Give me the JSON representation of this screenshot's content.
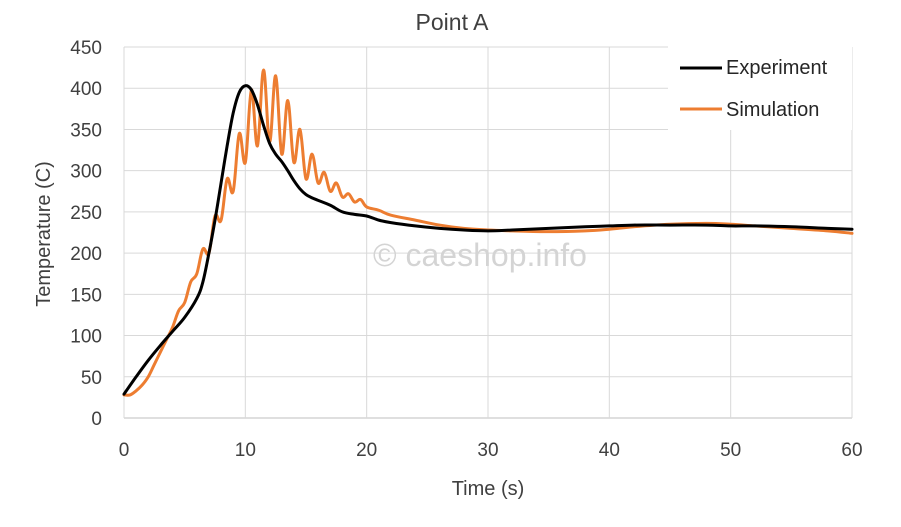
{
  "watermark": "© caeshop.info",
  "chart_data": {
    "type": "line",
    "title": "Point A",
    "xlabel": "Time (s)",
    "ylabel": "Temperature (C)",
    "xlim": [
      0,
      60
    ],
    "ylim": [
      0,
      450
    ],
    "xticks": [
      0,
      10,
      20,
      30,
      40,
      50,
      60
    ],
    "yticks": [
      0,
      50,
      100,
      150,
      200,
      250,
      300,
      350,
      400,
      450
    ],
    "grid": true,
    "legend_position": "top-right",
    "series": [
      {
        "name": "Experiment",
        "color": "#000000",
        "x": [
          0,
          1,
          2,
          3,
          4,
          5,
          6,
          6.5,
          7,
          7.5,
          8,
          8.5,
          9,
          9.5,
          10,
          10.5,
          11,
          11.5,
          12,
          12.5,
          13,
          13.5,
          14,
          14.5,
          15,
          15.5,
          16,
          17,
          18,
          19,
          20,
          21,
          22,
          24,
          26,
          28,
          30,
          32,
          35,
          38,
          40,
          42,
          45,
          48,
          50,
          52,
          55,
          58,
          60
        ],
        "y": [
          29,
          50,
          70,
          88,
          105,
          122,
          145,
          165,
          200,
          240,
          285,
          330,
          370,
          395,
          403,
          398,
          380,
          355,
          333,
          320,
          311,
          300,
          288,
          278,
          271,
          267,
          264,
          258,
          250,
          247,
          245,
          240,
          237,
          233,
          230,
          228,
          227,
          228,
          230,
          232,
          233,
          234,
          234,
          234,
          233,
          233,
          232,
          230,
          229
        ]
      },
      {
        "name": "Simulation",
        "color": "#ED7D31",
        "x": [
          0,
          0.5,
          1,
          1.5,
          2,
          2.5,
          3,
          3.5,
          4,
          4.5,
          5,
          5.5,
          6,
          6.5,
          7,
          7.5,
          8,
          8.5,
          9,
          9.5,
          10,
          10.5,
          11,
          11.5,
          12,
          12.5,
          13,
          13.5,
          14,
          14.5,
          15,
          15.5,
          16,
          16.5,
          17,
          17.5,
          18,
          18.5,
          19,
          19.5,
          20,
          21,
          22,
          24,
          26,
          28,
          30,
          32,
          35,
          38,
          40,
          42,
          45,
          48,
          50,
          52,
          55,
          58,
          60
        ],
        "y": [
          28,
          28,
          33,
          40,
          50,
          65,
          80,
          95,
          110,
          130,
          140,
          165,
          175,
          205,
          200,
          245,
          240,
          290,
          275,
          345,
          310,
          398,
          330,
          422,
          335,
          415,
          320,
          385,
          310,
          350,
          290,
          320,
          285,
          298,
          275,
          285,
          268,
          272,
          262,
          265,
          256,
          252,
          246,
          240,
          234,
          230,
          228,
          227,
          226,
          227,
          229,
          232,
          235,
          236,
          235,
          233,
          230,
          227,
          224
        ]
      }
    ]
  }
}
